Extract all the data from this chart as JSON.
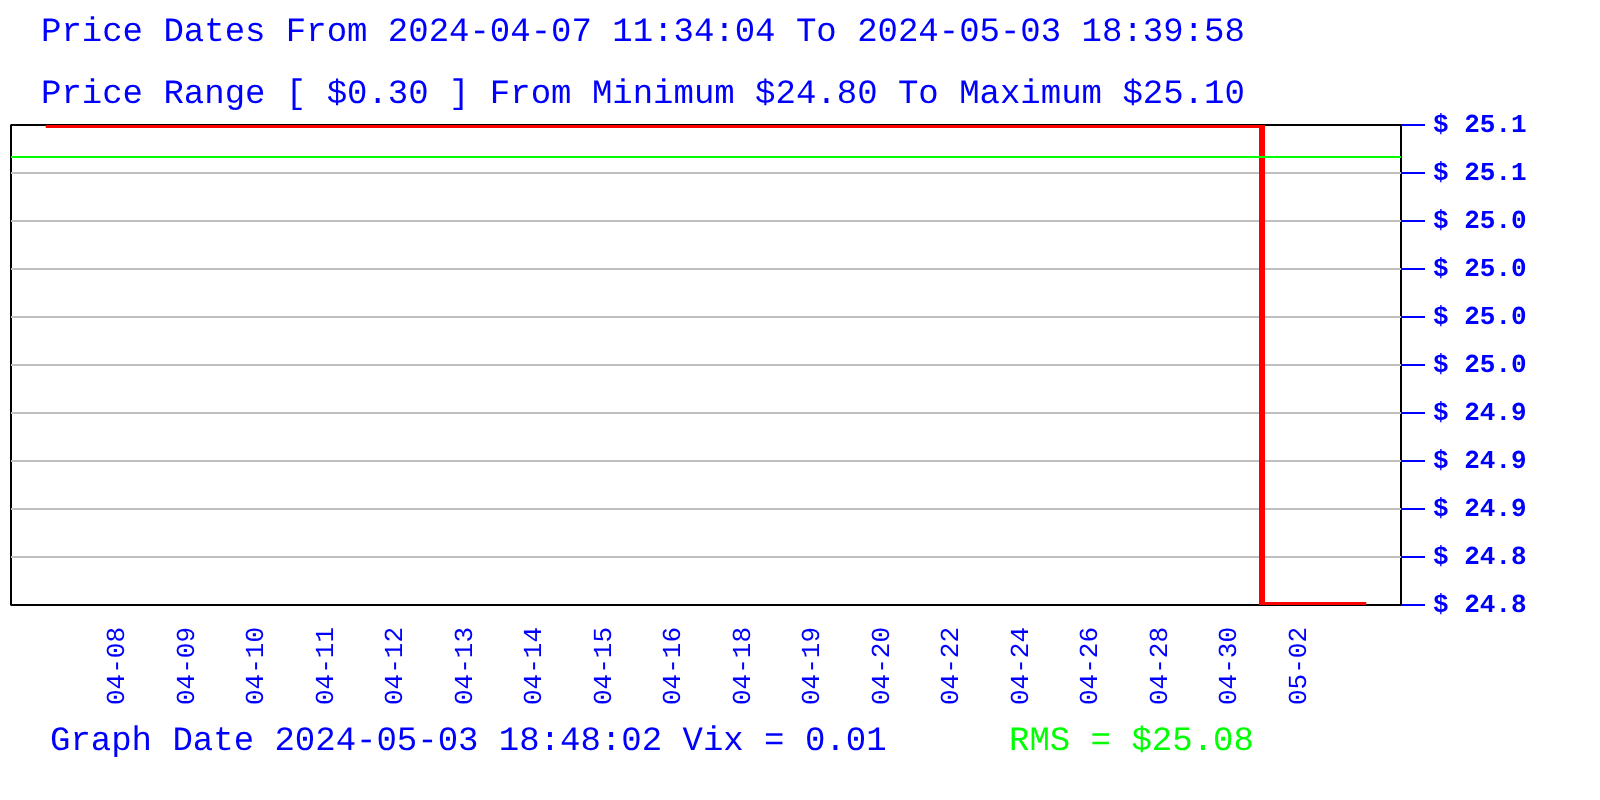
{
  "chart_data": {
    "type": "step",
    "title": "Price Dates From 2024-04-07 11:34:04 To 2024-05-03 18:39:58",
    "subtitle": "Price Range [ $0.30 ] From Minimum $24.80 To Maximum $25.10",
    "annotations": [
      "Graph Date 2024-05-03 18:48:02 Vix = 0.01"
    ],
    "categories": [
      null,
      "04-08",
      "04-09",
      "04-10",
      "04-11",
      "04-12",
      "04-13",
      "04-14",
      "04-15",
      "04-16",
      "04-18",
      "04-19",
      "04-20",
      "04-22",
      "04-24",
      "04-26",
      "04-28",
      "04-30",
      "05-02",
      null
    ],
    "series": [
      {
        "color": "#ff0000",
        "values": [
          25.1,
          25.1,
          25.1,
          25.1,
          25.1,
          25.1,
          25.1,
          25.1,
          25.1,
          25.1,
          25.1,
          25.1,
          25.1,
          25.1,
          25.1,
          25.1,
          25.1,
          25.1,
          24.8,
          24.8
        ]
      }
    ],
    "ylim": [
      24.8,
      25.1
    ],
    "yticks": [
      {
        "value": 25.1,
        "label": "$ 25.1"
      },
      {
        "value": 25.07,
        "label": "$ 25.1"
      },
      {
        "value": 25.04,
        "label": "$ 25.0"
      },
      {
        "value": 25.01,
        "label": "$ 25.0"
      },
      {
        "value": 24.98,
        "label": "$ 25.0"
      },
      {
        "value": 24.95,
        "label": "$ 25.0"
      },
      {
        "value": 24.92,
        "label": "$ 24.9"
      },
      {
        "value": 24.89,
        "label": "$ 24.9"
      },
      {
        "value": 24.86,
        "label": "$ 24.9"
      },
      {
        "value": 24.83,
        "label": "$ 24.8"
      },
      {
        "value": 24.8,
        "label": "$ 24.8"
      }
    ],
    "ref_lines": [
      {
        "axis": "y",
        "value": 25.08,
        "label": "RMS = $25.08",
        "color": "#00ff00"
      }
    ],
    "grid": "y"
  }
}
